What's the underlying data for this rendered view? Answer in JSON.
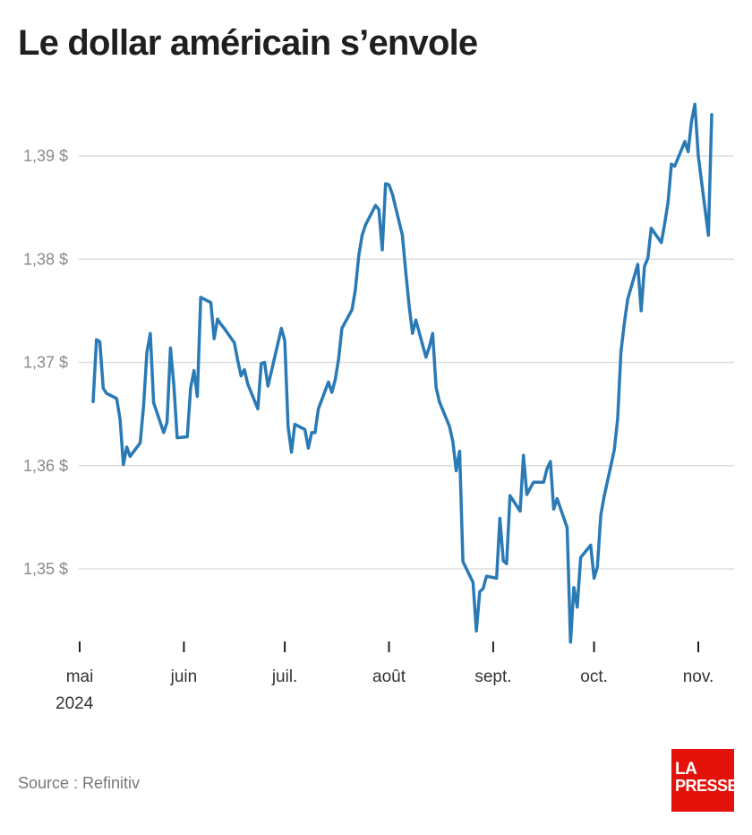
{
  "title": "Le dollar américain s’envole",
  "source": "Source : Refinitiv",
  "logo": {
    "line1": "LA",
    "line2": "PRESSE"
  },
  "colors": {
    "line": "#2a7ab5",
    "grid": "#dddddd",
    "brand": "#e3120b"
  },
  "chart_data": {
    "type": "line",
    "title": "Le dollar américain s’envole",
    "xlabel": "",
    "ylabel": "",
    "ylim": [
      1.344,
      1.397
    ],
    "yticks": [
      1.35,
      1.36,
      1.37,
      1.38,
      1.39
    ],
    "ytick_labels": [
      "1,35 $",
      "1,36 $",
      "1,37 $",
      "1,38 $",
      "1,39 $"
    ],
    "xticks": [
      "2024-05-01",
      "2024-06-01",
      "2024-07-01",
      "2024-08-01",
      "2024-09-01",
      "2024-10-01",
      "2024-11-01"
    ],
    "xtick_labels": [
      "mai",
      "juin",
      "juil.",
      "août",
      "sept.",
      "oct.",
      "nov."
    ],
    "year_label": "2024",
    "grid": true,
    "series": [
      {
        "x": [
          "2024-05-05",
          "2024-05-06",
          "2024-05-07",
          "2024-05-08",
          "2024-05-09",
          "2024-05-12",
          "2024-05-13",
          "2024-05-14",
          "2024-05-15",
          "2024-05-16",
          "2024-05-19",
          "2024-05-20",
          "2024-05-21",
          "2024-05-22",
          "2024-05-23",
          "2024-05-26",
          "2024-05-27",
          "2024-05-28",
          "2024-05-29",
          "2024-05-30",
          "2024-06-02",
          "2024-06-03",
          "2024-06-04",
          "2024-06-05",
          "2024-06-06",
          "2024-06-09",
          "2024-06-10",
          "2024-06-11",
          "2024-06-12",
          "2024-06-13",
          "2024-06-16",
          "2024-06-17",
          "2024-06-18",
          "2024-06-19",
          "2024-06-20",
          "2024-06-23",
          "2024-06-24",
          "2024-06-25",
          "2024-06-26",
          "2024-06-27",
          "2024-06-30",
          "2024-07-01",
          "2024-07-02",
          "2024-07-03",
          "2024-07-04",
          "2024-07-07",
          "2024-07-08",
          "2024-07-09",
          "2024-07-10",
          "2024-07-11",
          "2024-07-14",
          "2024-07-15",
          "2024-07-16",
          "2024-07-17",
          "2024-07-18",
          "2024-07-21",
          "2024-07-22",
          "2024-07-23",
          "2024-07-24",
          "2024-07-25",
          "2024-07-28",
          "2024-07-29",
          "2024-07-30",
          "2024-07-31",
          "2024-08-01",
          "2024-08-02",
          "2024-08-05",
          "2024-08-06",
          "2024-08-07",
          "2024-08-08",
          "2024-08-09",
          "2024-08-12",
          "2024-08-13",
          "2024-08-14",
          "2024-08-15",
          "2024-08-16",
          "2024-08-19",
          "2024-08-20",
          "2024-08-21",
          "2024-08-22",
          "2024-08-23",
          "2024-08-26",
          "2024-08-27",
          "2024-08-28",
          "2024-08-29",
          "2024-08-30",
          "2024-09-02",
          "2024-09-03",
          "2024-09-04",
          "2024-09-05",
          "2024-09-06",
          "2024-09-09",
          "2024-09-10",
          "2024-09-11",
          "2024-09-12",
          "2024-09-13",
          "2024-09-16",
          "2024-09-17",
          "2024-09-18",
          "2024-09-19",
          "2024-09-20",
          "2024-09-23",
          "2024-09-24",
          "2024-09-25",
          "2024-09-26",
          "2024-09-27",
          "2024-09-30",
          "2024-10-01",
          "2024-10-02",
          "2024-10-03",
          "2024-10-04",
          "2024-10-07",
          "2024-10-08",
          "2024-10-09",
          "2024-10-10",
          "2024-10-11",
          "2024-10-14",
          "2024-10-15",
          "2024-10-16",
          "2024-10-17",
          "2024-10-18",
          "2024-10-21",
          "2024-10-22",
          "2024-10-23",
          "2024-10-24",
          "2024-10-25",
          "2024-10-28",
          "2024-10-29",
          "2024-10-30",
          "2024-10-31",
          "2024-11-01",
          "2024-11-04",
          "2024-11-05"
        ],
        "values": [
          1.3662,
          1.3722,
          1.372,
          1.3675,
          1.367,
          1.3665,
          1.3645,
          1.3601,
          1.3618,
          1.3609,
          1.3622,
          1.3658,
          1.371,
          1.3728,
          1.3661,
          1.3632,
          1.3642,
          1.3714,
          1.3678,
          1.3627,
          1.3628,
          1.3675,
          1.3692,
          1.3667,
          1.3763,
          1.3758,
          1.3723,
          1.3742,
          1.3737,
          1.3733,
          1.3719,
          1.3702,
          1.3687,
          1.3693,
          1.3679,
          1.3655,
          1.3699,
          1.37,
          1.3677,
          1.3691,
          1.3733,
          1.3721,
          1.3638,
          1.3613,
          1.364,
          1.3635,
          1.3617,
          1.3632,
          1.3632,
          1.3655,
          1.3681,
          1.3671,
          1.3683,
          1.3703,
          1.3733,
          1.3751,
          1.377,
          1.3803,
          1.3823,
          1.3833,
          1.3852,
          1.3848,
          1.3809,
          1.3873,
          1.3872,
          1.3863,
          1.3823,
          1.3787,
          1.3755,
          1.3728,
          1.3741,
          1.3705,
          1.3715,
          1.3728,
          1.3676,
          1.3662,
          1.3638,
          1.3623,
          1.3595,
          1.3614,
          1.3507,
          1.3487,
          1.344,
          1.3478,
          1.3481,
          1.3493,
          1.3491,
          1.3549,
          1.3508,
          1.3505,
          1.3571,
          1.3556,
          1.361,
          1.3572,
          1.3578,
          1.3584,
          1.3584,
          1.3597,
          1.3604,
          1.3558,
          1.3568,
          1.354,
          1.3429,
          1.3482,
          1.3463,
          1.3511,
          1.3523,
          1.3491,
          1.3502,
          1.3552,
          1.357,
          1.3615,
          1.3645,
          1.371,
          1.3738,
          1.3761,
          1.3795,
          1.375,
          1.3793,
          1.3801,
          1.383,
          1.3816,
          1.3834,
          1.3855,
          1.3892,
          1.389,
          1.3914,
          1.3904,
          1.3934,
          1.395,
          1.39,
          1.3823,
          1.394
        ]
      }
    ]
  }
}
